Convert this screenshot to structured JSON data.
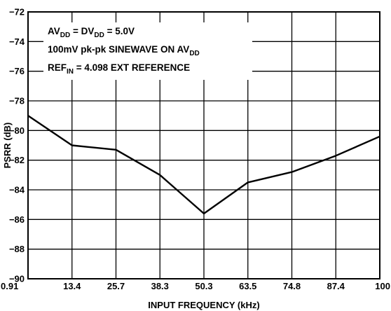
{
  "chart_data": {
    "type": "line",
    "title": "",
    "xlabel": "INPUT FREQUENCY (kHz)",
    "ylabel": "PSRR (dB)",
    "x_tick_labels": [
      "0.91",
      "13.4",
      "25.7",
      "38.3",
      "50.3",
      "63.5",
      "74.8",
      "87.4",
      "100"
    ],
    "y_ticks": [
      -72,
      -74,
      -76,
      -78,
      -80,
      -82,
      -84,
      -86,
      -88,
      -90
    ],
    "y_tick_labels": [
      "−72",
      "−74",
      "−76",
      "−78",
      "−80",
      "−82",
      "−84",
      "−86",
      "−88",
      "−90"
    ],
    "ylim": [
      -90,
      -72
    ],
    "grid": true,
    "series": [
      {
        "x": [
          0.91,
          13.4,
          25.7,
          38.3,
          50.3,
          63.5,
          74.8,
          87.4,
          100
        ],
        "values": [
          -79.0,
          -81.0,
          -81.3,
          -83.0,
          -85.6,
          -83.5,
          -82.8,
          -81.7,
          -80.4
        ],
        "color": "#000000"
      }
    ],
    "annotations": [
      [
        {
          "t": "AV"
        },
        {
          "t": "DD",
          "sub": true
        },
        {
          "t": " = DV"
        },
        {
          "t": "DD",
          "sub": true
        },
        {
          "t": " = 5.0V"
        }
      ],
      [
        {
          "t": "100mV pk-pk SINEWAVE ON AV"
        },
        {
          "t": "DD",
          "sub": true
        }
      ],
      [
        {
          "t": "REF"
        },
        {
          "t": "IN",
          "sub": true
        },
        {
          "t": " = 4.098 EXT REFERENCE"
        }
      ]
    ]
  }
}
